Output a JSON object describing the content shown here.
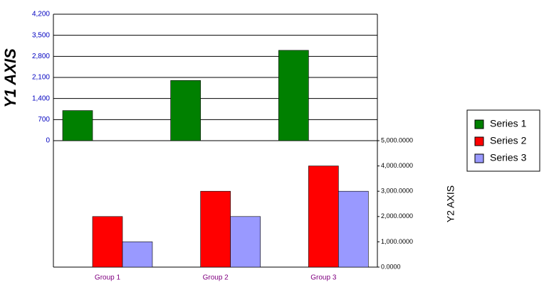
{
  "chart_data": {
    "type": "bar",
    "y_label": "Y1 AXIS",
    "y2_label": "Y2 AXIS",
    "categories": [
      "Group 1",
      "Group 2",
      "Group 3"
    ],
    "series": [
      {
        "name": "Series 1",
        "color": "#008000",
        "values": [
          1000,
          2000,
          3000
        ]
      },
      {
        "name": "Series 2",
        "color": "#ff0000",
        "values": [
          2000,
          3000,
          4000
        ],
        "axis": "y2"
      },
      {
        "name": "Series 3",
        "color": "#9999ff",
        "values": [
          1000,
          2000,
          3000
        ],
        "axis": "y2"
      }
    ],
    "ylim": [
      0,
      4200
    ],
    "yticks": [
      0,
      700,
      {
        "value": 1400,
        "label": "1,400"
      },
      {
        "value": 2100,
        "label": "2,100"
      },
      {
        "value": 2800,
        "label": "2,800"
      },
      {
        "value": 3500,
        "label": "3,500"
      },
      {
        "value": 4200,
        "label": "4,200"
      }
    ],
    "y2lim": [
      0,
      5000
    ],
    "y2ticks": [
      {
        "value": 0,
        "label": "0.0000"
      },
      {
        "value": 1000,
        "label": "1,000.0000"
      },
      {
        "value": 2000,
        "label": "2,000.0000"
      },
      {
        "value": 3000,
        "label": "3,000.0000"
      },
      {
        "value": 4000,
        "label": "4,000.0000"
      },
      {
        "value": 5000,
        "label": "5,000.0000"
      }
    ],
    "grid": true,
    "legend": "right"
  }
}
